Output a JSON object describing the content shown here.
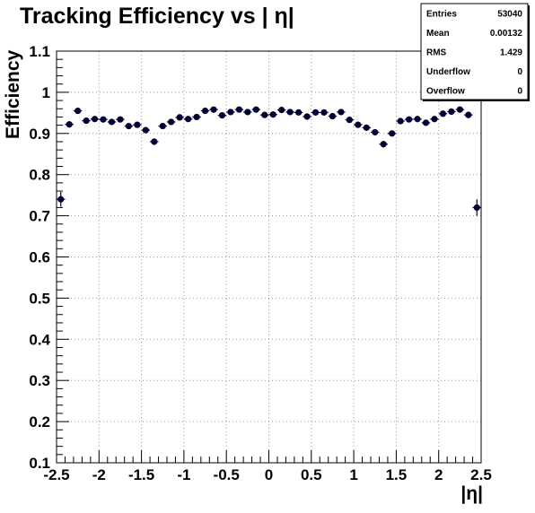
{
  "chart_data": {
    "type": "scatter",
    "title": "Tracking Efficiency vs | η|",
    "xlabel": "|η|",
    "ylabel": "Efficiency",
    "xlim": [
      -2.5,
      2.5
    ],
    "ylim": [
      0.1,
      1.1
    ],
    "grid": true,
    "xticks": [
      "-2.5",
      "-2",
      "-1.5",
      "-1",
      "-0.5",
      "0",
      "0.5",
      "1",
      "1.5",
      "2",
      "2.5"
    ],
    "yticks": [
      "0.1",
      "0.2",
      "0.3",
      "0.4",
      "0.5",
      "0.6",
      "0.7",
      "0.8",
      "0.9",
      "1",
      "1.1"
    ],
    "x": [
      -2.45,
      -2.35,
      -2.25,
      -2.15,
      -2.05,
      -1.95,
      -1.85,
      -1.75,
      -1.65,
      -1.55,
      -1.45,
      -1.35,
      -1.25,
      -1.15,
      -1.05,
      -0.95,
      -0.85,
      -0.75,
      -0.65,
      -0.55,
      -0.45,
      -0.35,
      -0.25,
      -0.15,
      -0.05,
      0.05,
      0.15,
      0.25,
      0.35,
      0.45,
      0.55,
      0.65,
      0.75,
      0.85,
      0.95,
      1.05,
      1.15,
      1.25,
      1.35,
      1.45,
      1.55,
      1.65,
      1.75,
      1.85,
      1.95,
      2.05,
      2.15,
      2.25,
      2.35,
      2.45
    ],
    "y": [
      0.74,
      0.922,
      0.955,
      0.931,
      0.935,
      0.934,
      0.928,
      0.934,
      0.918,
      0.921,
      0.908,
      0.88,
      0.918,
      0.928,
      0.939,
      0.935,
      0.94,
      0.955,
      0.958,
      0.944,
      0.952,
      0.958,
      0.952,
      0.958,
      0.945,
      0.946,
      0.957,
      0.952,
      0.951,
      0.941,
      0.951,
      0.951,
      0.942,
      0.952,
      0.933,
      0.921,
      0.914,
      0.903,
      0.874,
      0.9,
      0.93,
      0.934,
      0.935,
      0.926,
      0.935,
      0.948,
      0.953,
      0.958,
      0.945,
      0.72
    ],
    "yerr": [
      0.018,
      0.008,
      0.006,
      0.006,
      0.006,
      0.006,
      0.006,
      0.006,
      0.006,
      0.006,
      0.006,
      0.008,
      0.006,
      0.006,
      0.006,
      0.006,
      0.006,
      0.006,
      0.006,
      0.006,
      0.006,
      0.006,
      0.006,
      0.006,
      0.006,
      0.006,
      0.006,
      0.006,
      0.006,
      0.006,
      0.006,
      0.006,
      0.006,
      0.006,
      0.006,
      0.006,
      0.006,
      0.006,
      0.008,
      0.006,
      0.006,
      0.006,
      0.006,
      0.006,
      0.006,
      0.006,
      0.006,
      0.006,
      0.008,
      0.02
    ],
    "stats": [
      {
        "label": "Entries",
        "value": "53040"
      },
      {
        "label": "Mean",
        "value": "0.00132"
      },
      {
        "label": "RMS",
        "value": "1.429"
      },
      {
        "label": "Underflow",
        "value": "0"
      },
      {
        "label": "Overflow",
        "value": "0"
      }
    ],
    "marker_color": "#000033"
  }
}
